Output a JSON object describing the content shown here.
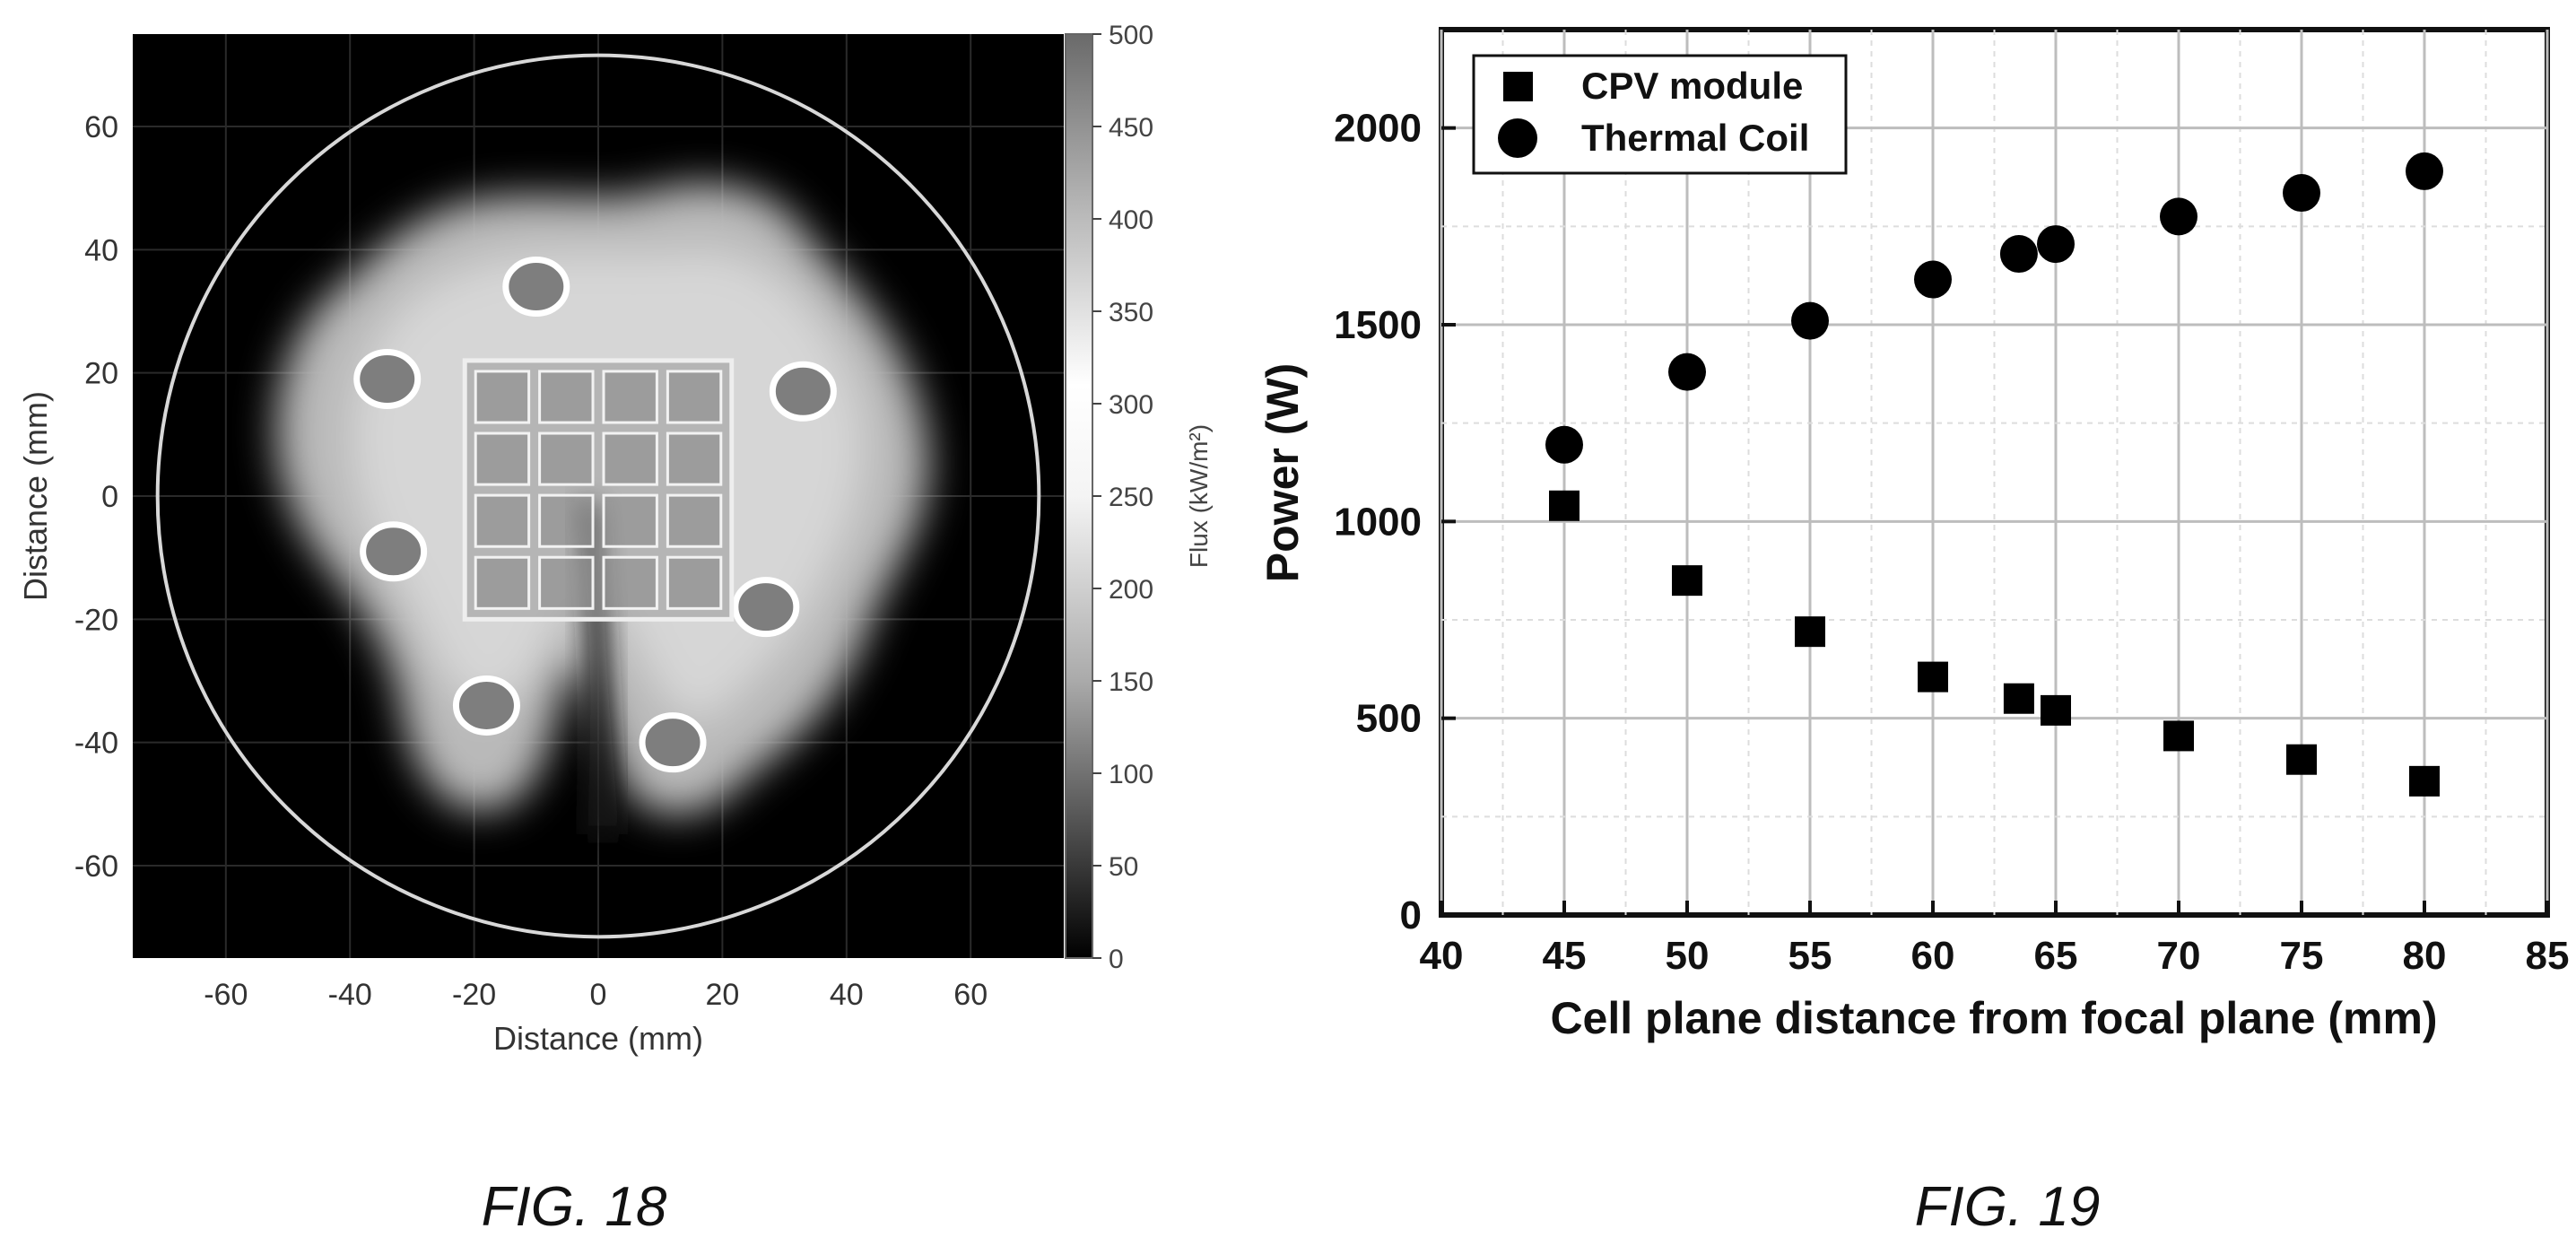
{
  "figures": [
    {
      "caption": "FIG. 18"
    },
    {
      "caption": "FIG. 19"
    }
  ],
  "chart_data": [
    {
      "type": "heatmap",
      "title": "",
      "xlabel": "Distance (mm)",
      "ylabel": "Distance (mm)",
      "xlim": [
        -75,
        75
      ],
      "ylim": [
        -75,
        75
      ],
      "x_ticks": [
        -60,
        -40,
        -20,
        0,
        20,
        40,
        60
      ],
      "y_ticks": [
        60,
        40,
        20,
        0,
        -20,
        -40,
        -60
      ],
      "grid": true,
      "colorbar": {
        "label": "Flux (kW/m²)",
        "range": [
          0,
          500
        ],
        "ticks": [
          500,
          450,
          400,
          350,
          300,
          250,
          200,
          150,
          100,
          50,
          0
        ],
        "colormap": "grayscale"
      },
      "outline_circle_radius_mm": 71,
      "module_outline_mm": {
        "x": [
          -21.5,
          21.5
        ],
        "y": [
          -20,
          22
        ]
      },
      "hot_spots_mm": [
        {
          "x": -10,
          "y": 34
        },
        {
          "x": -34,
          "y": 19
        },
        {
          "x": 33,
          "y": 17
        },
        {
          "x": -33,
          "y": -9
        },
        {
          "x": 27,
          "y": -18
        },
        {
          "x": -18,
          "y": -34
        },
        {
          "x": 12,
          "y": -40
        }
      ]
    },
    {
      "type": "scatter",
      "title": "",
      "xlabel": "Cell plane distance from focal plane (mm)",
      "ylabel": "Power (W)",
      "xlim": [
        40,
        85
      ],
      "ylim": [
        0,
        2250
      ],
      "x_ticks": [
        40,
        45,
        50,
        55,
        60,
        65,
        70,
        75,
        80,
        85
      ],
      "y_ticks": [
        0,
        500,
        1000,
        1500,
        2000
      ],
      "grid": true,
      "legend_position": "top-left",
      "series": [
        {
          "name": "CPV module",
          "marker": "square",
          "x": [
            45,
            50,
            55,
            60,
            63.5,
            65,
            70,
            75,
            80
          ],
          "y": [
            1040,
            850,
            720,
            605,
            550,
            520,
            455,
            395,
            340
          ]
        },
        {
          "name": "Thermal Coil",
          "marker": "circle",
          "x": [
            45,
            50,
            55,
            60,
            63.5,
            65,
            70,
            75,
            80
          ],
          "y": [
            1195,
            1380,
            1510,
            1615,
            1680,
            1705,
            1775,
            1835,
            1890
          ]
        }
      ]
    }
  ]
}
